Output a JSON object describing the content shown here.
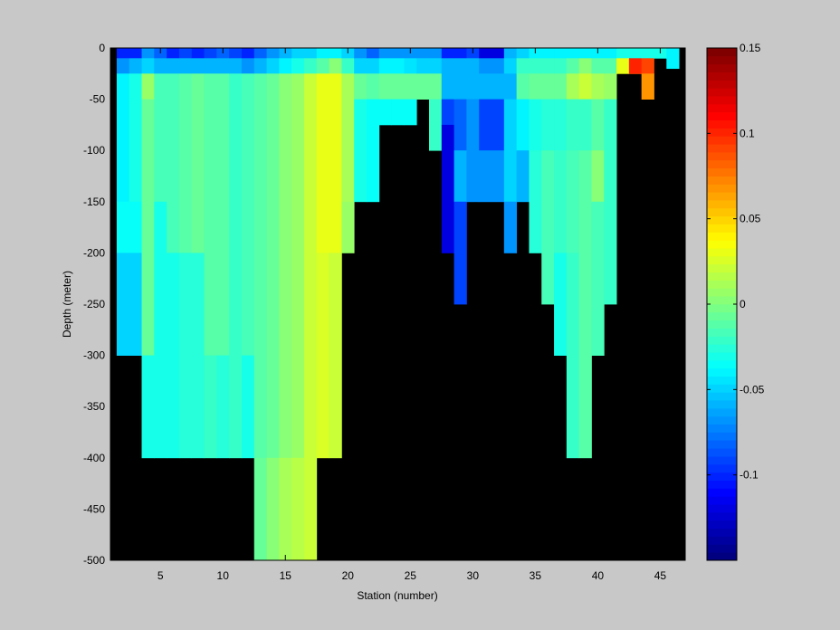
{
  "chart_data": {
    "type": "heatmap",
    "title": "",
    "xlabel": "Station (number)",
    "ylabel": "Depth (meter)",
    "xlim": [
      1,
      47
    ],
    "ylim": [
      -500,
      0
    ],
    "x_ticks": [
      5,
      10,
      15,
      20,
      25,
      30,
      35,
      40,
      45
    ],
    "y_ticks": [
      0,
      -50,
      -100,
      -150,
      -200,
      -250,
      -300,
      -350,
      -400,
      -450,
      -500
    ],
    "colorbar": {
      "range": [
        -0.15,
        0.15
      ],
      "ticks": [
        0.15,
        0.1,
        0.05,
        0,
        -0.05,
        -0.1
      ],
      "colormap": "jet",
      "levels": 64
    },
    "mask_color": "#000000",
    "grid": false,
    "columns": [
      {
        "station": 2,
        "bottom": -300,
        "cells": [
          [
            0,
            -0.1
          ],
          [
            -10,
            -0.07
          ],
          [
            -25,
            -0.04
          ],
          [
            -150,
            -0.035
          ],
          [
            -200,
            -0.05
          ]
        ]
      },
      {
        "station": 3,
        "bottom": -300,
        "cells": [
          [
            0,
            -0.1
          ],
          [
            -10,
            -0.06
          ],
          [
            -25,
            -0.03
          ],
          [
            -150,
            -0.035
          ],
          [
            -200,
            -0.05
          ]
        ]
      },
      {
        "station": 4,
        "bottom": -400,
        "cells": [
          [
            0,
            -0.07
          ],
          [
            -10,
            -0.05
          ],
          [
            -25,
            0.005
          ],
          [
            -50,
            -0.005
          ],
          [
            -300,
            -0.03
          ]
        ]
      },
      {
        "station": 5,
        "bottom": -400,
        "cells": [
          [
            0,
            -0.08
          ],
          [
            -10,
            -0.06
          ],
          [
            -25,
            -0.015
          ],
          [
            -150,
            -0.03
          ]
        ]
      },
      {
        "station": 6,
        "bottom": -400,
        "cells": [
          [
            0,
            -0.1
          ],
          [
            -10,
            -0.06
          ],
          [
            -25,
            -0.015
          ],
          [
            -200,
            -0.03
          ]
        ]
      },
      {
        "station": 7,
        "bottom": -400,
        "cells": [
          [
            0,
            -0.09
          ],
          [
            -10,
            -0.06
          ],
          [
            -25,
            -0.01
          ],
          [
            -200,
            -0.025
          ]
        ]
      },
      {
        "station": 8,
        "bottom": -400,
        "cells": [
          [
            0,
            -0.1
          ],
          [
            -10,
            -0.06
          ],
          [
            -25,
            -0.005
          ],
          [
            -200,
            -0.025
          ]
        ]
      },
      {
        "station": 9,
        "bottom": -400,
        "cells": [
          [
            0,
            -0.09
          ],
          [
            -10,
            -0.06
          ],
          [
            -25,
            -0.01
          ],
          [
            -300,
            -0.02
          ]
        ]
      },
      {
        "station": 10,
        "bottom": -400,
        "cells": [
          [
            0,
            -0.08
          ],
          [
            -10,
            -0.06
          ],
          [
            -25,
            -0.01
          ],
          [
            -300,
            -0.025
          ]
        ]
      },
      {
        "station": 11,
        "bottom": -400,
        "cells": [
          [
            0,
            -0.09
          ],
          [
            -10,
            -0.06
          ],
          [
            -25,
            -0.02
          ],
          [
            -300,
            -0.02
          ]
        ]
      },
      {
        "station": 12,
        "bottom": -400,
        "cells": [
          [
            0,
            -0.1
          ],
          [
            -10,
            -0.07
          ],
          [
            -25,
            -0.015
          ],
          [
            -300,
            -0.03
          ]
        ]
      },
      {
        "station": 13,
        "bottom": -500,
        "cells": [
          [
            0,
            -0.08
          ],
          [
            -10,
            -0.06
          ],
          [
            -25,
            -0.01
          ],
          [
            -400,
            -0.005
          ]
        ]
      },
      {
        "station": 14,
        "bottom": -500,
        "cells": [
          [
            0,
            -0.07
          ],
          [
            -10,
            -0.05
          ],
          [
            -25,
            -0.005
          ],
          [
            -400,
            0.0
          ]
        ]
      },
      {
        "station": 15,
        "bottom": -500,
        "cells": [
          [
            0,
            -0.06
          ],
          [
            -10,
            -0.04
          ],
          [
            -25,
            0.0
          ],
          [
            -400,
            0.01
          ]
        ]
      },
      {
        "station": 16,
        "bottom": -500,
        "cells": [
          [
            0,
            -0.05
          ],
          [
            -10,
            -0.03
          ],
          [
            -25,
            0.005
          ],
          [
            -400,
            0.015
          ]
        ]
      },
      {
        "station": 17,
        "bottom": -500,
        "cells": [
          [
            0,
            -0.05
          ],
          [
            -10,
            -0.02
          ],
          [
            -25,
            0.02
          ],
          [
            -400,
            0.02
          ]
        ]
      },
      {
        "station": 18,
        "bottom": -400,
        "cells": [
          [
            0,
            -0.04
          ],
          [
            -10,
            -0.01
          ],
          [
            -25,
            0.03
          ],
          [
            -200,
            0.025
          ]
        ]
      },
      {
        "station": 19,
        "bottom": -400,
        "cells": [
          [
            0,
            -0.04
          ],
          [
            -10,
            0.0
          ],
          [
            -25,
            0.03
          ],
          [
            -200,
            0.02
          ]
        ]
      },
      {
        "station": 20,
        "bottom": -200,
        "cells": [
          [
            0,
            -0.05
          ],
          [
            -10,
            -0.02
          ],
          [
            -25,
            0.01
          ],
          [
            -150,
            0.005
          ]
        ]
      },
      {
        "station": 21,
        "bottom": -150,
        "cells": [
          [
            0,
            -0.07
          ],
          [
            -10,
            -0.05
          ],
          [
            -25,
            -0.005
          ],
          [
            -50,
            -0.03
          ]
        ]
      },
      {
        "station": 22,
        "bottom": -150,
        "cells": [
          [
            0,
            -0.08
          ],
          [
            -10,
            -0.05
          ],
          [
            -25,
            -0.01
          ],
          [
            -50,
            -0.035
          ]
        ]
      },
      {
        "station": 23,
        "bottom": -75,
        "cells": [
          [
            0,
            -0.07
          ],
          [
            -10,
            -0.04
          ],
          [
            -25,
            -0.005
          ],
          [
            -50,
            -0.035
          ]
        ]
      },
      {
        "station": 24,
        "bottom": -75,
        "cells": [
          [
            0,
            -0.07
          ],
          [
            -10,
            -0.04
          ],
          [
            -25,
            -0.005
          ],
          [
            -50,
            -0.035
          ]
        ]
      },
      {
        "station": 25,
        "bottom": -75,
        "cells": [
          [
            0,
            -0.07
          ],
          [
            -10,
            -0.045
          ],
          [
            -25,
            -0.005
          ],
          [
            -50,
            -0.035
          ]
        ]
      },
      {
        "station": 26,
        "bottom": -50,
        "cells": [
          [
            0,
            -0.07
          ],
          [
            -10,
            -0.05
          ],
          [
            -25,
            -0.005
          ]
        ]
      },
      {
        "station": 27,
        "bottom": -100,
        "cells": [
          [
            0,
            -0.07
          ],
          [
            -10,
            -0.05
          ],
          [
            -25,
            -0.005
          ],
          [
            -50,
            -0.02
          ]
        ]
      },
      {
        "station": 28,
        "bottom": -200,
        "cells": [
          [
            0,
            -0.1
          ],
          [
            -10,
            -0.06
          ],
          [
            -25,
            -0.06
          ],
          [
            -50,
            -0.09
          ],
          [
            -75,
            -0.12
          ]
        ]
      },
      {
        "station": 29,
        "bottom": -250,
        "cells": [
          [
            0,
            -0.1
          ],
          [
            -10,
            -0.06
          ],
          [
            -25,
            -0.06
          ],
          [
            -50,
            -0.08
          ],
          [
            -100,
            -0.06
          ],
          [
            -150,
            -0.09
          ]
        ]
      },
      {
        "station": 30,
        "bottom": -150,
        "cells": [
          [
            0,
            -0.09
          ],
          [
            -10,
            -0.06
          ],
          [
            -25,
            -0.06
          ],
          [
            -50,
            -0.07
          ]
        ]
      },
      {
        "station": 31,
        "bottom": -150,
        "cells": [
          [
            0,
            -0.12
          ],
          [
            -10,
            -0.07
          ],
          [
            -25,
            -0.06
          ],
          [
            -50,
            -0.09
          ],
          [
            -100,
            -0.07
          ]
        ]
      },
      {
        "station": 32,
        "bottom": -150,
        "cells": [
          [
            0,
            -0.12
          ],
          [
            -10,
            -0.07
          ],
          [
            -25,
            -0.06
          ],
          [
            -50,
            -0.09
          ],
          [
            -100,
            -0.07
          ]
        ]
      },
      {
        "station": 33,
        "bottom": -200,
        "cells": [
          [
            0,
            -0.06
          ],
          [
            -10,
            -0.05
          ],
          [
            -25,
            -0.06
          ],
          [
            -50,
            -0.05
          ],
          [
            -150,
            -0.07
          ]
        ]
      },
      {
        "station": 34,
        "bottom": -150,
        "cells": [
          [
            0,
            -0.05
          ],
          [
            -10,
            -0.02
          ],
          [
            -25,
            -0.01
          ],
          [
            -50,
            -0.04
          ],
          [
            -100,
            -0.06
          ]
        ]
      },
      {
        "station": 35,
        "bottom": -200,
        "cells": [
          [
            0,
            -0.04
          ],
          [
            -10,
            -0.02
          ],
          [
            -25,
            -0.005
          ],
          [
            -50,
            -0.03
          ],
          [
            -100,
            -0.025
          ]
        ]
      },
      {
        "station": 36,
        "bottom": -250,
        "cells": [
          [
            0,
            -0.04
          ],
          [
            -10,
            -0.02
          ],
          [
            -25,
            -0.005
          ],
          [
            -50,
            -0.025
          ],
          [
            -100,
            -0.015
          ]
        ]
      },
      {
        "station": 37,
        "bottom": -300,
        "cells": [
          [
            0,
            -0.04
          ],
          [
            -10,
            -0.02
          ],
          [
            -25,
            -0.005
          ],
          [
            -50,
            -0.025
          ],
          [
            -100,
            -0.02
          ],
          [
            -200,
            -0.03
          ]
        ]
      },
      {
        "station": 38,
        "bottom": -400,
        "cells": [
          [
            0,
            -0.04
          ],
          [
            -10,
            -0.01
          ],
          [
            -25,
            0.01
          ],
          [
            -50,
            -0.02
          ],
          [
            -100,
            -0.015
          ],
          [
            -200,
            -0.02
          ]
        ]
      },
      {
        "station": 39,
        "bottom": -400,
        "cells": [
          [
            0,
            -0.04
          ],
          [
            -10,
            0.0
          ],
          [
            -25,
            0.02
          ],
          [
            -50,
            -0.02
          ],
          [
            -100,
            -0.01
          ],
          [
            -200,
            -0.01
          ]
        ]
      },
      {
        "station": 40,
        "bottom": -300,
        "cells": [
          [
            0,
            -0.04
          ],
          [
            -10,
            -0.01
          ],
          [
            -25,
            0.01
          ],
          [
            -50,
            -0.01
          ],
          [
            -100,
            0.0
          ],
          [
            -150,
            -0.015
          ]
        ]
      },
      {
        "station": 41,
        "bottom": -250,
        "cells": [
          [
            0,
            -0.04
          ],
          [
            -10,
            -0.01
          ],
          [
            -25,
            0.005
          ],
          [
            -50,
            -0.02
          ]
        ]
      },
      {
        "station": 42,
        "bottom": -25,
        "cells": [
          [
            0,
            -0.03
          ],
          [
            -10,
            0.03
          ]
        ]
      },
      {
        "station": 43,
        "bottom": -25,
        "cells": [
          [
            0,
            -0.03
          ],
          [
            -10,
            0.1
          ],
          [
            -25,
            0.08
          ]
        ]
      },
      {
        "station": 44,
        "bottom": -50,
        "cells": [
          [
            0,
            -0.03
          ],
          [
            -10,
            0.09
          ],
          [
            -25,
            0.07
          ]
        ]
      },
      {
        "station": 45,
        "bottom": -10,
        "cells": [
          [
            0,
            -0.03
          ]
        ]
      },
      {
        "station": 46,
        "bottom": -20,
        "cells": [
          [
            0,
            -0.04
          ],
          [
            -10,
            -0.04
          ]
        ]
      }
    ]
  }
}
